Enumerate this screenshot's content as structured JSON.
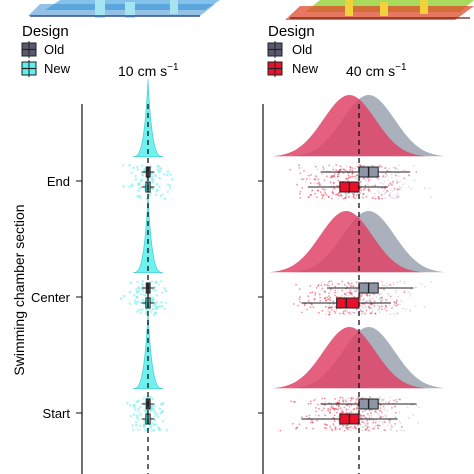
{
  "chart_data": {
    "type": "violin",
    "y_axis_label": "Swimming chamber section",
    "categories": [
      "End",
      "Center",
      "Start"
    ],
    "legend": {
      "title": "Design",
      "entries": [
        "Old",
        "New"
      ]
    },
    "colors": {
      "left_old": "#5a5a6e",
      "left_new": "#5ff0ee",
      "right_old": "#8e95a6",
      "right_new": "#e8102a",
      "right_density_new": "#e04468"
    },
    "panels": [
      {
        "speed_value": "10",
        "speed_unit": "cm s",
        "speed_exponent": "−1",
        "reference_line": 0,
        "distribution": "narrow",
        "groups": [
          {
            "section": "End",
            "design": "Old",
            "median": 0.0,
            "q1": -0.25,
            "q3": 0.3,
            "whisker_low": -0.9,
            "whisker_high": 0.9
          },
          {
            "section": "End",
            "design": "New",
            "median": 0.0,
            "q1": -0.3,
            "q3": 0.3,
            "whisker_low": -0.9,
            "whisker_high": 0.9
          },
          {
            "section": "Center",
            "design": "Old",
            "median": 0.0,
            "q1": -0.25,
            "q3": 0.3,
            "whisker_low": -0.9,
            "whisker_high": 0.9
          },
          {
            "section": "Center",
            "design": "New",
            "median": 0.0,
            "q1": -0.3,
            "q3": 0.3,
            "whisker_low": -0.9,
            "whisker_high": 0.9
          },
          {
            "section": "Start",
            "design": "Old",
            "median": 0.0,
            "q1": -0.25,
            "q3": 0.3,
            "whisker_low": -0.9,
            "whisker_high": 0.9
          },
          {
            "section": "Start",
            "design": "New",
            "median": 0.0,
            "q1": -0.3,
            "q3": 0.3,
            "whisker_low": -0.9,
            "whisker_high": 0.9
          }
        ]
      },
      {
        "speed_value": "40",
        "speed_unit": "cm s",
        "speed_exponent": "−1",
        "reference_line": 40,
        "distribution": "wide",
        "groups": [
          {
            "section": "End",
            "design": "Old",
            "median": 43,
            "q1": 40,
            "q3": 46,
            "whisker_low": 28,
            "whisker_high": 56
          },
          {
            "section": "End",
            "design": "New",
            "median": 37,
            "q1": 34,
            "q3": 40,
            "whisker_low": 24,
            "whisker_high": 49
          },
          {
            "section": "Center",
            "design": "Old",
            "median": 43,
            "q1": 40,
            "q3": 46,
            "whisker_low": 30,
            "whisker_high": 57
          },
          {
            "section": "Center",
            "design": "New",
            "median": 36,
            "q1": 33,
            "q3": 40,
            "whisker_low": 22,
            "whisker_high": 50
          },
          {
            "section": "Start",
            "design": "Old",
            "median": 43,
            "q1": 40,
            "q3": 46,
            "whisker_low": 28,
            "whisker_high": 58
          },
          {
            "section": "Start",
            "design": "New",
            "median": 37,
            "q1": 34,
            "q3": 40,
            "whisker_low": 22,
            "whisker_high": 52
          }
        ]
      }
    ]
  }
}
